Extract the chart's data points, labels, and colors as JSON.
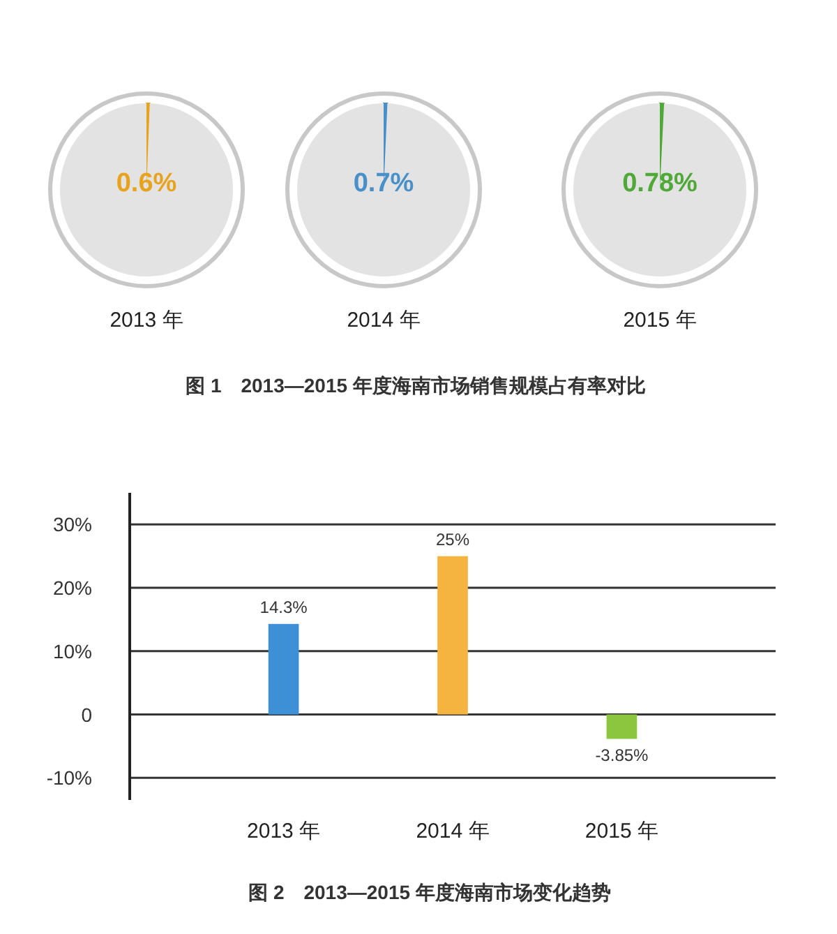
{
  "chart_data": [
    {
      "type": "pie",
      "title": "2013 年",
      "categories": [
        null,
        null
      ],
      "values": [
        0.6,
        99.4
      ],
      "colors": [
        "#e8a31e",
        "#e3e3e3"
      ],
      "value_labels": [
        "0.6%",
        null
      ],
      "annotations": [
        "图 1　2013—2015 年度海南市场销售规模占有率对比"
      ]
    },
    {
      "type": "pie",
      "title": "2014 年",
      "categories": [
        null,
        null
      ],
      "values": [
        0.7,
        99.3
      ],
      "colors": [
        "#4a90c8",
        "#e3e3e3"
      ],
      "value_labels": [
        "0.7%",
        null
      ]
    },
    {
      "type": "pie",
      "title": "2015 年",
      "categories": [
        null,
        null
      ],
      "values": [
        0.78,
        99.22
      ],
      "colors": [
        "#4fa838",
        "#e3e3e3"
      ],
      "value_labels": [
        "0.78%",
        null
      ]
    },
    {
      "type": "bar",
      "categories": [
        "2013 年",
        "2014 年",
        "2015 年"
      ],
      "values": [
        14.3,
        25,
        -3.85
      ],
      "colors": [
        "#3d8fd6",
        "#f5b440",
        "#8cc63f"
      ],
      "value_labels": [
        "14.3%",
        "25%",
        "-3.85%"
      ],
      "ylim": [
        -13.5,
        35
      ],
      "yticks": [
        {
          "value": 30,
          "label": "30%"
        },
        {
          "value": 20,
          "label": "20%"
        },
        {
          "value": 10,
          "label": "10%"
        },
        0,
        {
          "value": -10,
          "label": "-10%"
        }
      ],
      "grid": "y",
      "annotations": [
        "图 2　2013—2015 年度海南市场变化趋势"
      ]
    }
  ]
}
